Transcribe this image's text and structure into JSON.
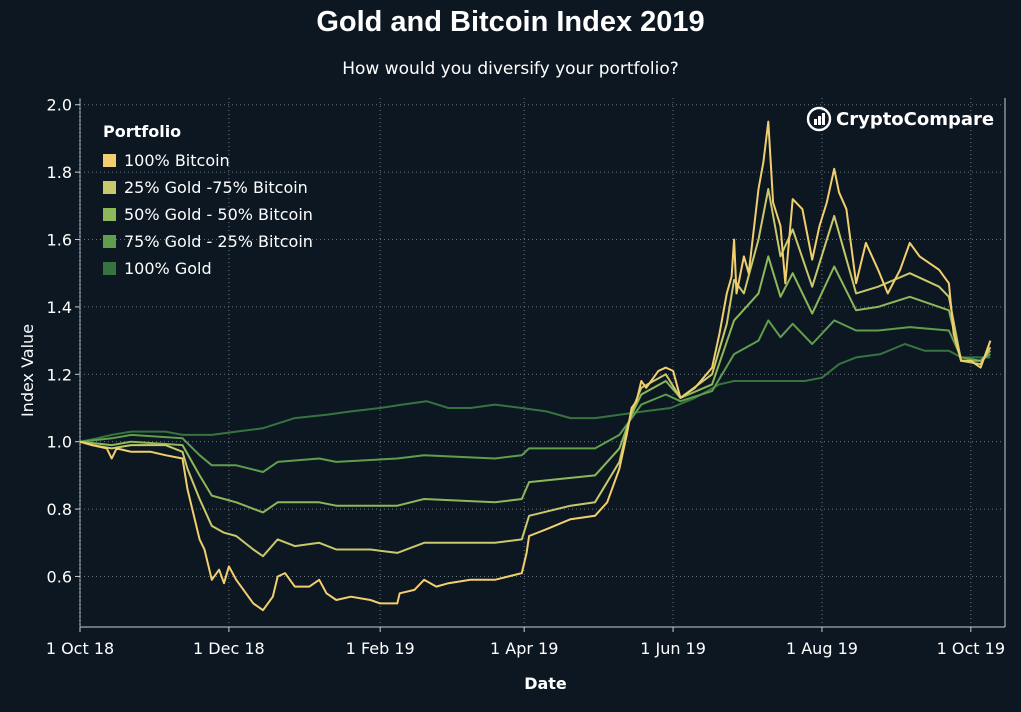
{
  "title": "Gold and Bitcoin Index 2019",
  "subtitle": "How would you diversify your portfolio?",
  "brand": {
    "name": "CryptoCompare",
    "icon": "cryptocompare-logo-icon"
  },
  "legend": {
    "title": "Portfolio",
    "placement": "top-left"
  },
  "colors": {
    "background": "#0d1722",
    "grid": "#6b7580",
    "text": "#ffffff"
  },
  "chart_data": {
    "type": "line",
    "xlabel": "Date",
    "ylabel": "Index Value",
    "ylim": [
      0.45,
      2.02
    ],
    "xlim": [
      "2018-10-01",
      "2019-10-15"
    ],
    "grid": true,
    "x_ticks": [
      "1 Oct 18",
      "1 Dec 18",
      "1 Feb 19",
      "1 Apr 19",
      "1 Jun 19",
      "1 Aug 19",
      "1 Oct 19"
    ],
    "x_tick_dates": [
      "2018-10-01",
      "2018-12-01",
      "2019-02-01",
      "2019-04-01",
      "2019-06-01",
      "2019-08-01",
      "2019-10-01"
    ],
    "y_ticks": [
      "0.6",
      "0.8",
      "1.0",
      "1.2",
      "1.4",
      "1.6",
      "1.8",
      "2.0"
    ],
    "y_tick_values": [
      0.6,
      0.8,
      1.0,
      1.2,
      1.4,
      1.6,
      1.8,
      2.0
    ],
    "series_draw_order": [
      4,
      3,
      2,
      1,
      0
    ],
    "series": [
      {
        "name": "100% Bitcoin",
        "color": "#f2cf6e",
        "points": [
          [
            "2018-10-01",
            1.0
          ],
          [
            "2018-10-06",
            0.99
          ],
          [
            "2018-10-12",
            0.98
          ],
          [
            "2018-10-14",
            0.95
          ],
          [
            "2018-10-16",
            0.98
          ],
          [
            "2018-10-22",
            0.97
          ],
          [
            "2018-10-30",
            0.97
          ],
          [
            "2018-11-05",
            0.96
          ],
          [
            "2018-11-12",
            0.95
          ],
          [
            "2018-11-14",
            0.86
          ],
          [
            "2018-11-19",
            0.71
          ],
          [
            "2018-11-21",
            0.68
          ],
          [
            "2018-11-24",
            0.59
          ],
          [
            "2018-11-27",
            0.62
          ],
          [
            "2018-11-29",
            0.58
          ],
          [
            "2018-12-01",
            0.63
          ],
          [
            "2018-12-04",
            0.59
          ],
          [
            "2018-12-08",
            0.55
          ],
          [
            "2018-12-11",
            0.52
          ],
          [
            "2018-12-15",
            0.5
          ],
          [
            "2018-12-19",
            0.54
          ],
          [
            "2018-12-21",
            0.6
          ],
          [
            "2018-12-24",
            0.61
          ],
          [
            "2018-12-28",
            0.57
          ],
          [
            "2019-01-03",
            0.57
          ],
          [
            "2019-01-07",
            0.59
          ],
          [
            "2019-01-10",
            0.55
          ],
          [
            "2019-01-14",
            0.53
          ],
          [
            "2019-01-20",
            0.54
          ],
          [
            "2019-01-28",
            0.53
          ],
          [
            "2019-02-01",
            0.52
          ],
          [
            "2019-02-08",
            0.52
          ],
          [
            "2019-02-09",
            0.55
          ],
          [
            "2019-02-15",
            0.56
          ],
          [
            "2019-02-19",
            0.59
          ],
          [
            "2019-02-24",
            0.57
          ],
          [
            "2019-03-01",
            0.58
          ],
          [
            "2019-03-10",
            0.59
          ],
          [
            "2019-03-20",
            0.59
          ],
          [
            "2019-03-31",
            0.61
          ],
          [
            "2019-04-02",
            0.67
          ],
          [
            "2019-04-03",
            0.72
          ],
          [
            "2019-04-10",
            0.74
          ],
          [
            "2019-04-20",
            0.77
          ],
          [
            "2019-04-30",
            0.78
          ],
          [
            "2019-05-05",
            0.82
          ],
          [
            "2019-05-10",
            0.92
          ],
          [
            "2019-05-13",
            1.02
          ],
          [
            "2019-05-15",
            1.1
          ],
          [
            "2019-05-17",
            1.12
          ],
          [
            "2019-05-19",
            1.18
          ],
          [
            "2019-05-21",
            1.16
          ],
          [
            "2019-05-26",
            1.21
          ],
          [
            "2019-05-29",
            1.22
          ],
          [
            "2019-06-01",
            1.21
          ],
          [
            "2019-06-04",
            1.13
          ],
          [
            "2019-06-10",
            1.16
          ],
          [
            "2019-06-17",
            1.22
          ],
          [
            "2019-06-20",
            1.32
          ],
          [
            "2019-06-23",
            1.44
          ],
          [
            "2019-06-25",
            1.49
          ],
          [
            "2019-06-26",
            1.6
          ],
          [
            "2019-06-27",
            1.44
          ],
          [
            "2019-06-30",
            1.55
          ],
          [
            "2019-07-02",
            1.5
          ],
          [
            "2019-07-06",
            1.75
          ],
          [
            "2019-07-08",
            1.83
          ],
          [
            "2019-07-10",
            1.95
          ],
          [
            "2019-07-12",
            1.71
          ],
          [
            "2019-07-15",
            1.64
          ],
          [
            "2019-07-17",
            1.47
          ],
          [
            "2019-07-20",
            1.72
          ],
          [
            "2019-07-24",
            1.69
          ],
          [
            "2019-07-28",
            1.54
          ],
          [
            "2019-07-31",
            1.64
          ],
          [
            "2019-08-03",
            1.71
          ],
          [
            "2019-08-06",
            1.81
          ],
          [
            "2019-08-08",
            1.74
          ],
          [
            "2019-08-11",
            1.69
          ],
          [
            "2019-08-15",
            1.47
          ],
          [
            "2019-08-19",
            1.59
          ],
          [
            "2019-08-24",
            1.51
          ],
          [
            "2019-08-28",
            1.44
          ],
          [
            "2019-09-02",
            1.51
          ],
          [
            "2019-09-06",
            1.59
          ],
          [
            "2019-09-10",
            1.55
          ],
          [
            "2019-09-14",
            1.53
          ],
          [
            "2019-09-18",
            1.51
          ],
          [
            "2019-09-22",
            1.47
          ],
          [
            "2019-09-24",
            1.32
          ],
          [
            "2019-09-27",
            1.24
          ],
          [
            "2019-10-01",
            1.24
          ],
          [
            "2019-10-05",
            1.22
          ],
          [
            "2019-10-07",
            1.26
          ],
          [
            "2019-10-09",
            1.3
          ]
        ]
      },
      {
        "name": "25% Gold -75% Bitcoin",
        "color": "#c7c96a",
        "points": [
          [
            "2018-10-01",
            1.0
          ],
          [
            "2018-10-06",
            0.99
          ],
          [
            "2018-10-14",
            0.98
          ],
          [
            "2018-10-22",
            0.99
          ],
          [
            "2018-11-05",
            0.99
          ],
          [
            "2018-11-12",
            0.97
          ],
          [
            "2018-11-14",
            0.92
          ],
          [
            "2018-11-19",
            0.83
          ],
          [
            "2018-11-24",
            0.75
          ],
          [
            "2018-11-29",
            0.73
          ],
          [
            "2018-12-04",
            0.72
          ],
          [
            "2018-12-11",
            0.68
          ],
          [
            "2018-12-15",
            0.66
          ],
          [
            "2018-12-21",
            0.71
          ],
          [
            "2018-12-28",
            0.69
          ],
          [
            "2019-01-07",
            0.7
          ],
          [
            "2019-01-14",
            0.68
          ],
          [
            "2019-01-28",
            0.68
          ],
          [
            "2019-02-08",
            0.67
          ],
          [
            "2019-02-19",
            0.7
          ],
          [
            "2019-03-01",
            0.7
          ],
          [
            "2019-03-20",
            0.7
          ],
          [
            "2019-03-31",
            0.71
          ],
          [
            "2019-04-03",
            0.78
          ],
          [
            "2019-04-20",
            0.81
          ],
          [
            "2019-04-30",
            0.82
          ],
          [
            "2019-05-10",
            0.94
          ],
          [
            "2019-05-15",
            1.09
          ],
          [
            "2019-05-19",
            1.16
          ],
          [
            "2019-05-29",
            1.2
          ],
          [
            "2019-06-04",
            1.13
          ],
          [
            "2019-06-17",
            1.2
          ],
          [
            "2019-06-23",
            1.35
          ],
          [
            "2019-06-26",
            1.48
          ],
          [
            "2019-06-30",
            1.44
          ],
          [
            "2019-07-06",
            1.6
          ],
          [
            "2019-07-10",
            1.75
          ],
          [
            "2019-07-15",
            1.55
          ],
          [
            "2019-07-20",
            1.63
          ],
          [
            "2019-07-28",
            1.46
          ],
          [
            "2019-08-06",
            1.67
          ],
          [
            "2019-08-15",
            1.44
          ],
          [
            "2019-08-24",
            1.46
          ],
          [
            "2019-09-06",
            1.5
          ],
          [
            "2019-09-18",
            1.46
          ],
          [
            "2019-09-22",
            1.43
          ],
          [
            "2019-09-27",
            1.24
          ],
          [
            "2019-10-05",
            1.23
          ],
          [
            "2019-10-09",
            1.28
          ]
        ]
      },
      {
        "name": "50% Gold - 50% Bitcoin",
        "color": "#8cb85a",
        "points": [
          [
            "2018-10-01",
            1.0
          ],
          [
            "2018-10-14",
            0.99
          ],
          [
            "2018-10-22",
            1.0
          ],
          [
            "2018-11-12",
            0.99
          ],
          [
            "2018-11-19",
            0.9
          ],
          [
            "2018-11-24",
            0.84
          ],
          [
            "2018-12-04",
            0.82
          ],
          [
            "2018-12-15",
            0.79
          ],
          [
            "2018-12-21",
            0.82
          ],
          [
            "2019-01-07",
            0.82
          ],
          [
            "2019-01-14",
            0.81
          ],
          [
            "2019-02-08",
            0.81
          ],
          [
            "2019-02-19",
            0.83
          ],
          [
            "2019-03-20",
            0.82
          ],
          [
            "2019-03-31",
            0.83
          ],
          [
            "2019-04-03",
            0.88
          ],
          [
            "2019-04-30",
            0.9
          ],
          [
            "2019-05-10",
            0.98
          ],
          [
            "2019-05-15",
            1.08
          ],
          [
            "2019-05-19",
            1.14
          ],
          [
            "2019-05-29",
            1.18
          ],
          [
            "2019-06-04",
            1.13
          ],
          [
            "2019-06-17",
            1.17
          ],
          [
            "2019-06-26",
            1.36
          ],
          [
            "2019-07-06",
            1.44
          ],
          [
            "2019-07-10",
            1.55
          ],
          [
            "2019-07-15",
            1.43
          ],
          [
            "2019-07-20",
            1.5
          ],
          [
            "2019-07-28",
            1.38
          ],
          [
            "2019-08-06",
            1.52
          ],
          [
            "2019-08-15",
            1.39
          ],
          [
            "2019-08-24",
            1.4
          ],
          [
            "2019-09-06",
            1.43
          ],
          [
            "2019-09-22",
            1.39
          ],
          [
            "2019-09-27",
            1.24
          ],
          [
            "2019-10-05",
            1.24
          ],
          [
            "2019-10-09",
            1.27
          ]
        ]
      },
      {
        "name": "75% Gold - 25% Bitcoin",
        "color": "#5e9e4e",
        "points": [
          [
            "2018-10-01",
            1.0
          ],
          [
            "2018-10-14",
            1.01
          ],
          [
            "2018-10-22",
            1.02
          ],
          [
            "2018-11-12",
            1.01
          ],
          [
            "2018-11-19",
            0.96
          ],
          [
            "2018-11-24",
            0.93
          ],
          [
            "2018-12-04",
            0.93
          ],
          [
            "2018-12-15",
            0.91
          ],
          [
            "2018-12-21",
            0.94
          ],
          [
            "2019-01-07",
            0.95
          ],
          [
            "2019-01-14",
            0.94
          ],
          [
            "2019-02-08",
            0.95
          ],
          [
            "2019-02-19",
            0.96
          ],
          [
            "2019-03-20",
            0.95
          ],
          [
            "2019-03-31",
            0.96
          ],
          [
            "2019-04-03",
            0.98
          ],
          [
            "2019-04-30",
            0.98
          ],
          [
            "2019-05-10",
            1.02
          ],
          [
            "2019-05-15",
            1.07
          ],
          [
            "2019-05-19",
            1.11
          ],
          [
            "2019-05-29",
            1.14
          ],
          [
            "2019-06-04",
            1.12
          ],
          [
            "2019-06-17",
            1.15
          ],
          [
            "2019-06-26",
            1.26
          ],
          [
            "2019-07-06",
            1.3
          ],
          [
            "2019-07-10",
            1.36
          ],
          [
            "2019-07-15",
            1.31
          ],
          [
            "2019-07-20",
            1.35
          ],
          [
            "2019-07-28",
            1.29
          ],
          [
            "2019-08-06",
            1.36
          ],
          [
            "2019-08-15",
            1.33
          ],
          [
            "2019-08-24",
            1.33
          ],
          [
            "2019-09-06",
            1.34
          ],
          [
            "2019-09-22",
            1.33
          ],
          [
            "2019-09-27",
            1.25
          ],
          [
            "2019-10-05",
            1.24
          ],
          [
            "2019-10-09",
            1.26
          ]
        ]
      },
      {
        "name": "100% Gold",
        "color": "#37733f",
        "points": [
          [
            "2018-10-01",
            1.0
          ],
          [
            "2018-10-08",
            1.01
          ],
          [
            "2018-10-14",
            1.02
          ],
          [
            "2018-10-22",
            1.03
          ],
          [
            "2018-11-05",
            1.03
          ],
          [
            "2018-11-12",
            1.02
          ],
          [
            "2018-11-24",
            1.02
          ],
          [
            "2018-12-04",
            1.03
          ],
          [
            "2018-12-15",
            1.04
          ],
          [
            "2018-12-28",
            1.07
          ],
          [
            "2019-01-10",
            1.08
          ],
          [
            "2019-01-20",
            1.09
          ],
          [
            "2019-02-01",
            1.1
          ],
          [
            "2019-02-10",
            1.11
          ],
          [
            "2019-02-20",
            1.12
          ],
          [
            "2019-03-01",
            1.1
          ],
          [
            "2019-03-10",
            1.1
          ],
          [
            "2019-03-20",
            1.11
          ],
          [
            "2019-03-31",
            1.1
          ],
          [
            "2019-04-10",
            1.09
          ],
          [
            "2019-04-20",
            1.07
          ],
          [
            "2019-04-30",
            1.07
          ],
          [
            "2019-05-10",
            1.08
          ],
          [
            "2019-05-20",
            1.09
          ],
          [
            "2019-05-31",
            1.1
          ],
          [
            "2019-06-10",
            1.13
          ],
          [
            "2019-06-20",
            1.17
          ],
          [
            "2019-06-26",
            1.18
          ],
          [
            "2019-07-05",
            1.18
          ],
          [
            "2019-07-15",
            1.18
          ],
          [
            "2019-07-25",
            1.18
          ],
          [
            "2019-08-01",
            1.19
          ],
          [
            "2019-08-08",
            1.23
          ],
          [
            "2019-08-15",
            1.25
          ],
          [
            "2019-08-25",
            1.26
          ],
          [
            "2019-09-04",
            1.29
          ],
          [
            "2019-09-12",
            1.27
          ],
          [
            "2019-09-22",
            1.27
          ],
          [
            "2019-09-27",
            1.25
          ],
          [
            "2019-10-05",
            1.25
          ],
          [
            "2019-10-09",
            1.25
          ]
        ]
      }
    ]
  }
}
